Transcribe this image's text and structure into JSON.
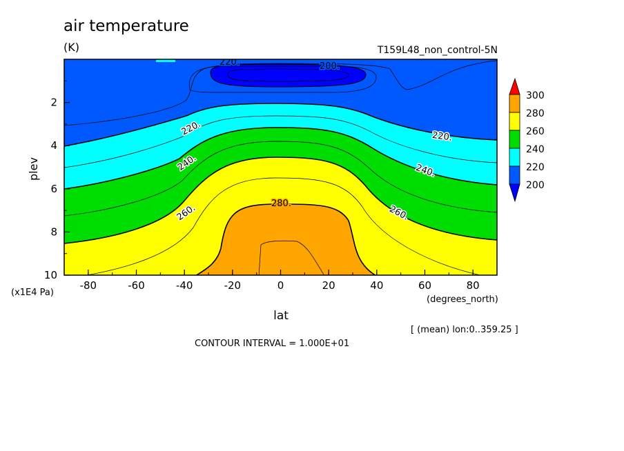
{
  "chart_data": {
    "type": "heatmap",
    "title": "air temperature",
    "units": "(K)",
    "run_label": "T159L48_non_control-5N",
    "xlabel": "lat",
    "x_units": "(degrees_north)",
    "ylabel": "plev",
    "y_units": "(x1E4 Pa)",
    "xlim": [
      -90,
      90
    ],
    "ylim": [
      0,
      10
    ],
    "y_inverted": true,
    "x_ticks": [
      -80,
      -60,
      -40,
      -20,
      0,
      20,
      40,
      60,
      80
    ],
    "y_ticks": [
      2,
      4,
      6,
      8,
      10
    ],
    "levels": [
      200,
      220,
      240,
      260,
      280,
      300
    ],
    "legend_labels": [
      "300",
      "280",
      "260",
      "240",
      "220",
      "200"
    ],
    "level_colors": {
      "below_200": "#0000ff",
      "200_220": "#0059ff",
      "220_240": "#00ffff",
      "240_260": "#00dd00",
      "260_280": "#ffff00",
      "280_300": "#ffa500",
      "above_300": "#ff0000"
    },
    "contour_labels": [
      {
        "text": "220.",
        "lat": -30,
        "plev": 3.0
      },
      {
        "text": "220.",
        "lat": 67,
        "plev": 3.7
      },
      {
        "text": "220.",
        "lat": -20,
        "plev": 0.05
      },
      {
        "text": "200.",
        "lat": 20,
        "plev": 0.25
      },
      {
        "text": "240.",
        "lat": -38,
        "plev": 4.4
      },
      {
        "text": "240.",
        "lat": 60,
        "plev": 5.3
      },
      {
        "text": "260.",
        "lat": -38,
        "plev": 7.1
      },
      {
        "text": "260.",
        "lat": 50,
        "plev": 7.5
      },
      {
        "text": "280.",
        "lat": 2,
        "plev": 6.6
      }
    ],
    "isotherms_plev_by_lat": {
      "lat": [
        -90,
        -80,
        -60,
        -40,
        -30,
        -20,
        -10,
        0,
        10,
        20,
        30,
        40,
        50,
        60,
        80,
        90
      ],
      "T220": [
        3.9,
        3.85,
        3.6,
        3.0,
        2.5,
        2.15,
        2.05,
        2.05,
        2.05,
        2.1,
        2.2,
        2.5,
        3.0,
        3.3,
        3.55,
        3.6
      ],
      "T240": [
        5.9,
        5.8,
        5.4,
        4.8,
        4.2,
        3.55,
        3.2,
        3.2,
        3.2,
        3.3,
        3.6,
        4.3,
        4.9,
        5.3,
        5.7,
        5.8
      ],
      "T260": [
        8.4,
        8.25,
        7.8,
        6.9,
        5.9,
        5.0,
        4.65,
        4.65,
        4.7,
        4.9,
        5.5,
        6.4,
        7.4,
        7.8,
        8.1,
        8.2
      ],
      "T280": [
        10,
        10,
        10,
        10,
        9.3,
        7.4,
        6.7,
        6.65,
        6.7,
        7.1,
        8.8,
        10,
        10,
        10,
        10,
        10
      ]
    },
    "minimum_region": {
      "label": "200.",
      "lat_range": [
        -28,
        35
      ],
      "plev_range": [
        0.3,
        1.2
      ]
    },
    "grid": false
  },
  "footer": {
    "contour_interval": "CONTOUR INTERVAL = 1.000E+01",
    "mean_note": "[ (mean) lon:0..359.25 ]"
  }
}
